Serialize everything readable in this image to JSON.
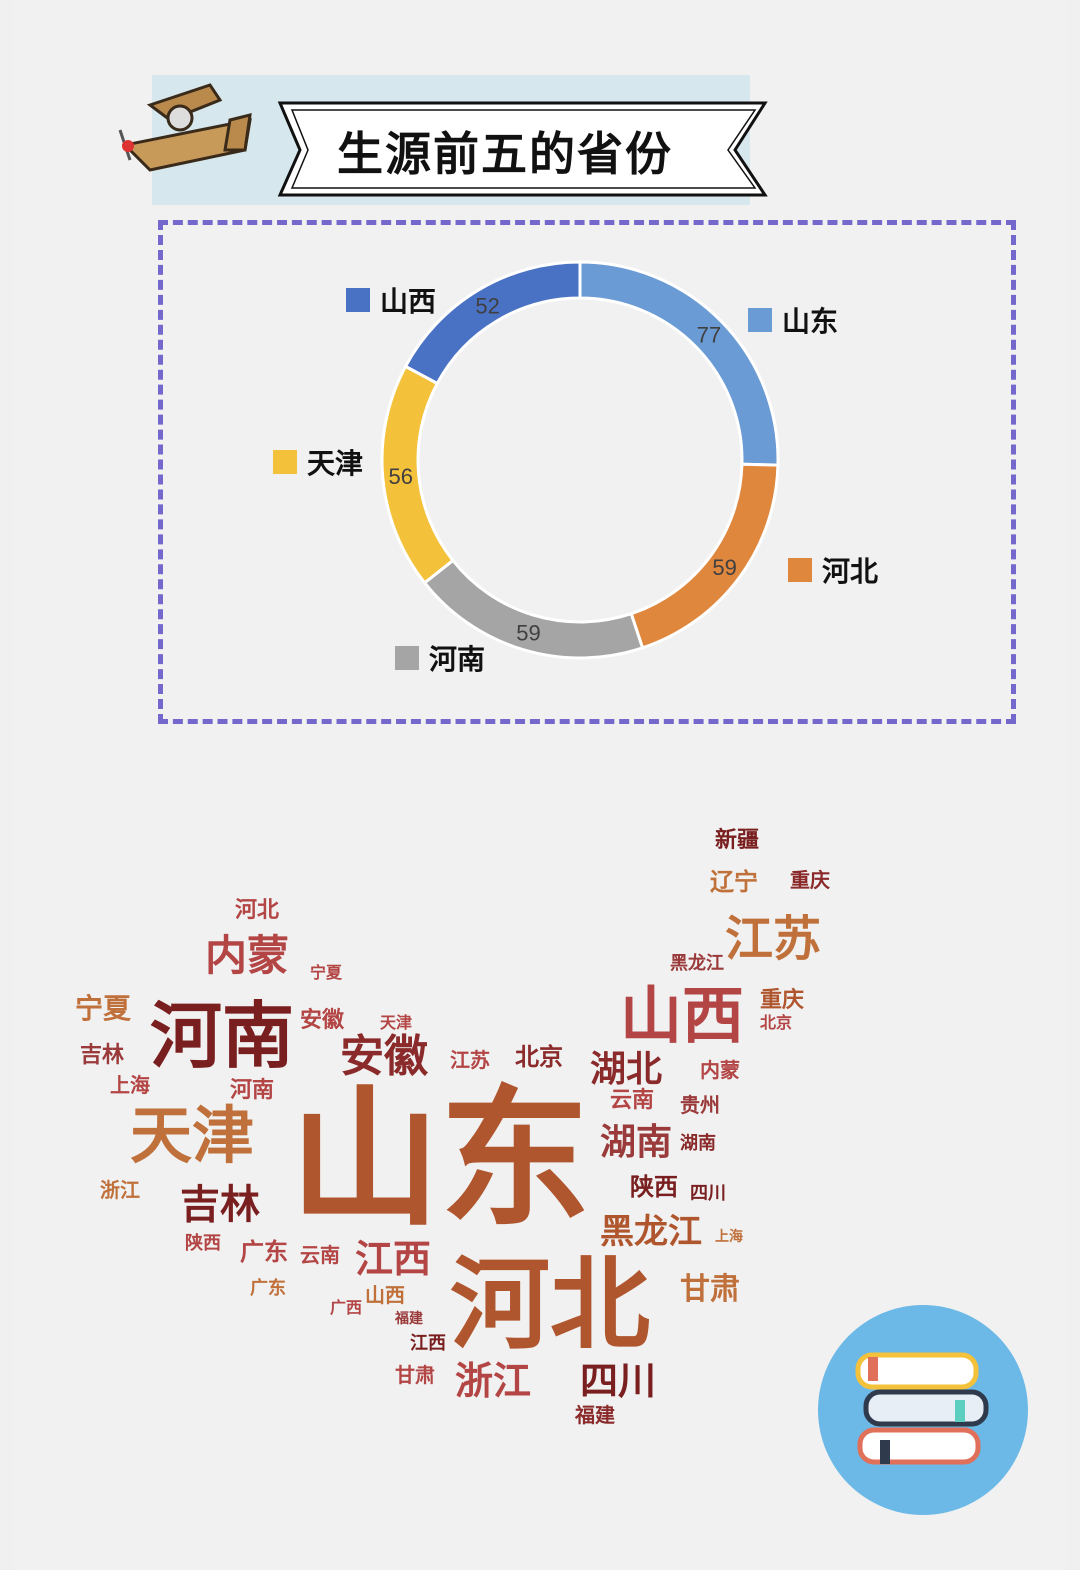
{
  "title": "生源前五的省份",
  "chart_data": {
    "type": "pie",
    "donut": true,
    "categories": [
      "山东",
      "河北",
      "河南",
      "天津",
      "山西"
    ],
    "values": [
      77,
      59,
      59,
      56,
      52
    ],
    "colors": [
      "#6a9bd4",
      "#e0873e",
      "#a5a5a5",
      "#f3c13a",
      "#4a72c4"
    ],
    "data_labels": true,
    "legend": "around-chart"
  },
  "wordcloud": {
    "words": [
      "山东",
      "河北",
      "河南",
      "天津",
      "山西",
      "江苏",
      "安徽",
      "内蒙",
      "吉林",
      "湖北",
      "湖南",
      "浙江",
      "四川",
      "黑龙江",
      "江西",
      "陕西",
      "甘肃",
      "辽宁",
      "重庆",
      "新疆",
      "北京",
      "宁夏",
      "云南",
      "广东",
      "贵州",
      "上海",
      "福建",
      "河北",
      "河南",
      "江西",
      "湖南",
      "四川",
      "吉林",
      "广东",
      "甘肃",
      "山西",
      "福建",
      "内蒙",
      "安徽",
      "黑龙江",
      "宁夏",
      "陕西",
      "江苏",
      "北京",
      "天津",
      "浙江",
      "云南",
      "广西",
      "重庆",
      "上海"
    ]
  },
  "icons": {
    "plane": "airplane-icon",
    "books": "books-icon"
  }
}
